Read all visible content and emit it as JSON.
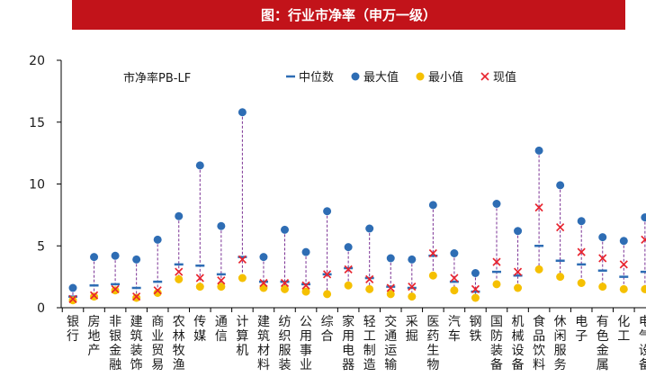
{
  "header": {
    "title": "图：行业市净率（申万一级）"
  },
  "chart_data": {
    "type": "scatter",
    "title": "图：行业市净率（申万一级）",
    "subtitle": "市净率PB-LF",
    "ylim": [
      0,
      20
    ],
    "yticks": [
      0,
      5,
      10,
      15,
      20
    ],
    "legend": [
      "中位数",
      "最大值",
      "最小值",
      "现值"
    ],
    "categories": [
      "银行",
      "房地产",
      "非银金融",
      "建筑装饰",
      "商业贸易",
      "农林牧渔",
      "传媒",
      "通信",
      "计算机",
      "建筑材料",
      "纺织服装",
      "公用事业",
      "综合",
      "家用电器",
      "轻工制造",
      "交通运输",
      "采掘",
      "医药生物",
      "汽车",
      "钢铁",
      "国防装备",
      "机械设备",
      "食品饮料",
      "休闲服务",
      "电子",
      "有色金属",
      "化工",
      "电气设备"
    ],
    "series": [
      {
        "name": "中位数",
        "values": [
          0.9,
          1.8,
          1.9,
          1.6,
          2.1,
          3.5,
          3.4,
          2.7,
          4.1,
          2.1,
          2.1,
          1.9,
          2.7,
          3.2,
          2.4,
          1.7,
          1.6,
          4.2,
          2.1,
          1.3,
          2.9,
          2.6,
          5.0,
          3.8,
          3.5,
          3.0,
          2.5,
          2.9
        ]
      },
      {
        "name": "最大值",
        "values": [
          1.6,
          4.1,
          4.2,
          3.9,
          5.5,
          7.4,
          11.5,
          6.6,
          15.8,
          4.1,
          6.3,
          4.5,
          7.8,
          4.9,
          6.4,
          4.0,
          3.9,
          8.3,
          4.4,
          2.8,
          8.4,
          6.2,
          12.7,
          9.9,
          7.0,
          5.7,
          5.4,
          7.3
        ]
      },
      {
        "name": "最小值",
        "values": [
          0.6,
          0.9,
          1.4,
          0.8,
          1.2,
          2.3,
          1.7,
          1.7,
          2.4,
          1.6,
          1.5,
          1.3,
          1.1,
          1.8,
          1.5,
          1.1,
          0.9,
          2.6,
          1.4,
          0.8,
          1.9,
          1.6,
          3.1,
          2.5,
          2.0,
          1.7,
          1.5,
          1.5
        ]
      },
      {
        "name": "现值",
        "values": [
          0.7,
          1.0,
          1.5,
          0.9,
          1.4,
          2.9,
          2.4,
          2.2,
          3.9,
          2.0,
          2.0,
          1.8,
          2.7,
          3.1,
          2.3,
          1.6,
          1.7,
          4.4,
          2.4,
          1.5,
          3.7,
          2.9,
          8.1,
          6.5,
          4.5,
          4.0,
          3.5,
          5.5
        ]
      }
    ],
    "colors": {
      "median": "#2e6db4",
      "max": "#2e6db4",
      "min": "#f5c001",
      "current": "#e8242e",
      "range_line": "#7b3294",
      "axis": "#000000",
      "text": "#1a1a1a",
      "title_bg": "#c2131a"
    }
  }
}
